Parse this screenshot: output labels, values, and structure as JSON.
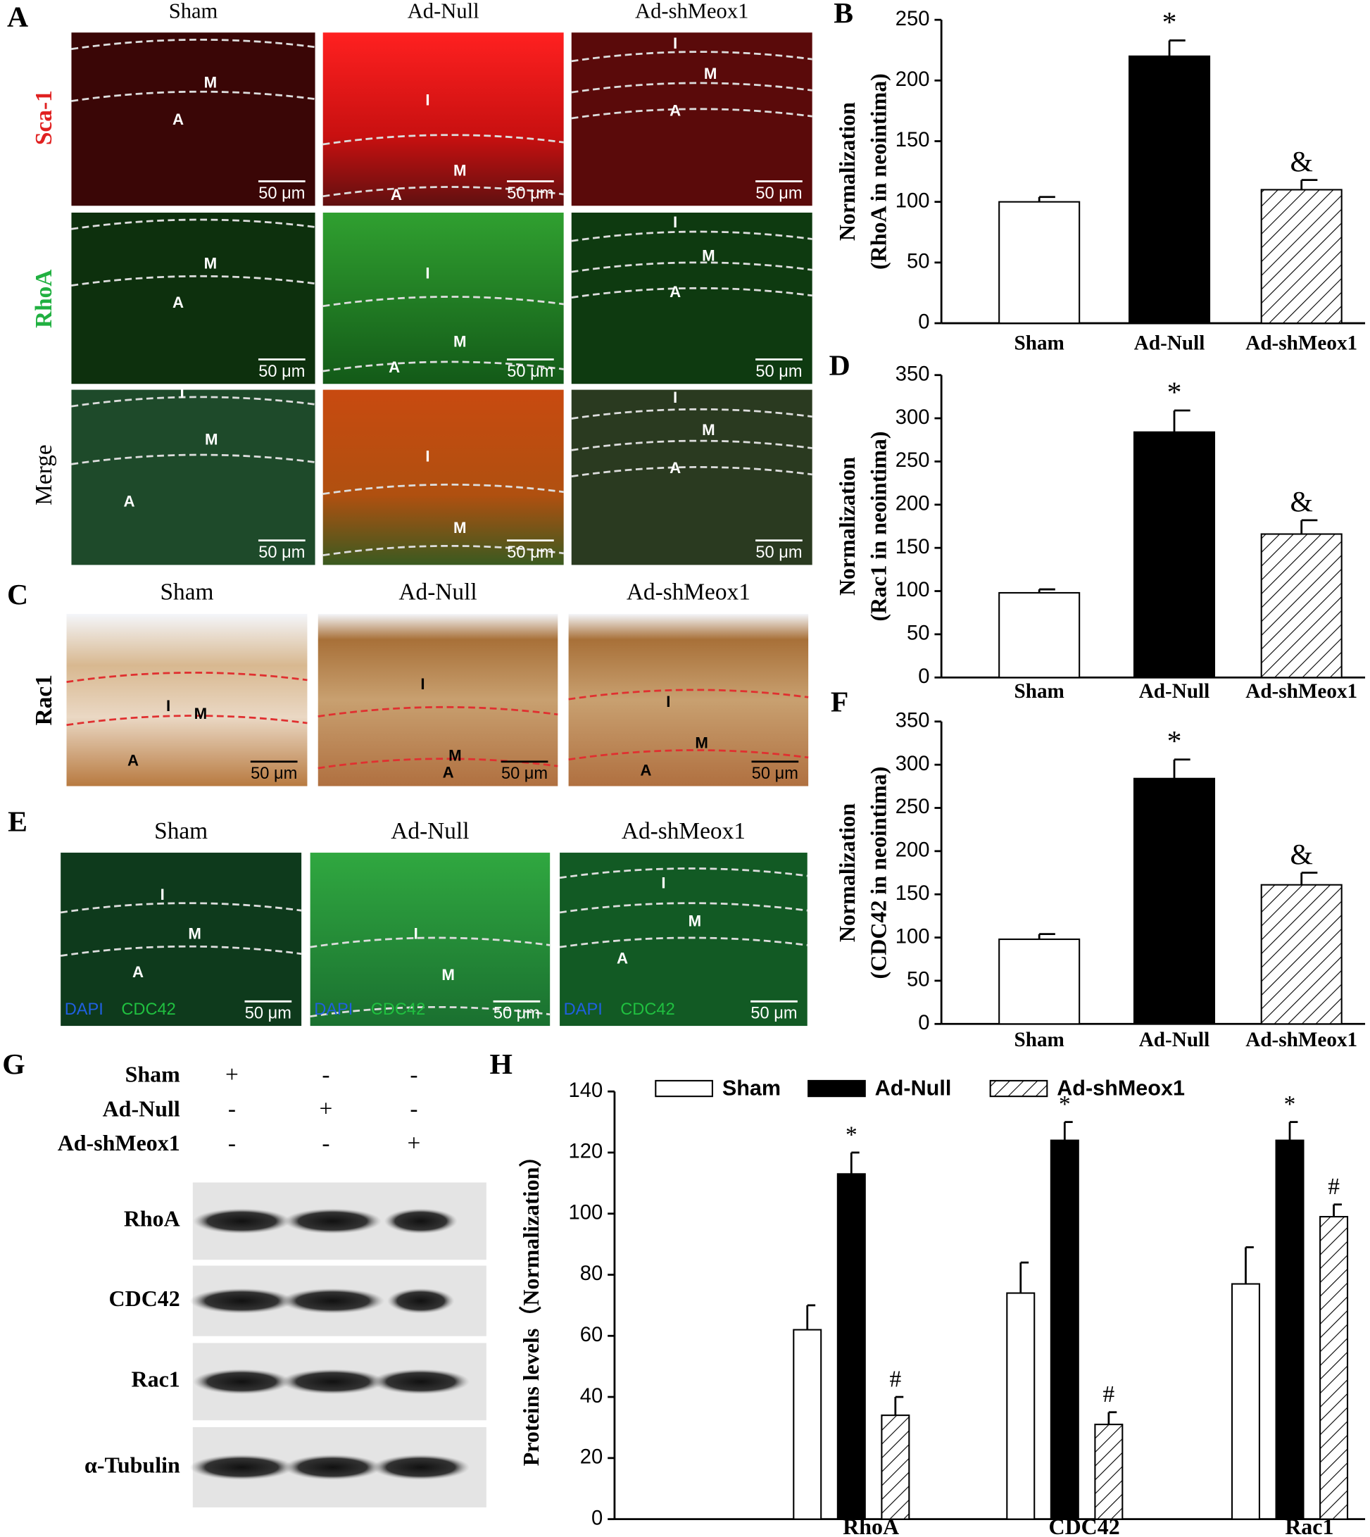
{
  "figure": {
    "panel_labels": [
      "A",
      "B",
      "C",
      "D",
      "E",
      "F",
      "G",
      "H"
    ],
    "panel_A": {
      "columns": [
        "Sham",
        "Ad-Null",
        "Ad-shMeox1"
      ],
      "rows": [
        "Sca-1",
        "RhoA",
        "Merge"
      ],
      "scale_bar": "50 μm",
      "regions": [
        [
          [
            "M",
            "A"
          ],
          [
            "I",
            "M",
            "A"
          ],
          [
            "I",
            "M",
            "A"
          ]
        ],
        [
          [
            "M",
            "A"
          ],
          [
            "I",
            "M",
            "A"
          ],
          [
            "I",
            "M",
            "A"
          ]
        ],
        [
          [
            "I",
            "M",
            "A"
          ],
          [
            "I",
            "M"
          ],
          [
            "I",
            "M",
            "A"
          ]
        ]
      ]
    },
    "panel_C": {
      "columns": [
        "Sham",
        "Ad-Null",
        "Ad-shMeox1"
      ],
      "row": "Rac1",
      "scale_bar": "50 μm",
      "regions": [
        [
          "I",
          "M",
          "A"
        ],
        [
          "I",
          "M",
          "A"
        ],
        [
          "I",
          "M",
          "A"
        ]
      ]
    },
    "panel_E": {
      "columns": [
        "Sham",
        "Ad-Null",
        "Ad-shMeox1"
      ],
      "stain_labels": [
        "DAPI",
        "CDC42"
      ],
      "scale_bar": "50 μm",
      "regions": [
        [
          "I",
          "M",
          "A"
        ],
        [
          "I",
          "M"
        ],
        [
          "I",
          "M",
          "A"
        ]
      ]
    },
    "panel_G": {
      "conditions": [
        "Sham",
        "Ad-Null",
        "Ad-shMeox1"
      ],
      "signs": [
        [
          "+",
          "-",
          "-"
        ],
        [
          "-",
          "+",
          "-"
        ],
        [
          "-",
          "-",
          "+"
        ]
      ],
      "bands": [
        "RhoA",
        "CDC42",
        "Rac1",
        "α-Tubulin"
      ]
    }
  },
  "chart_data": [
    {
      "type": "bar",
      "y_label": [
        "Normalization",
        "(RhoA in neointima)"
      ],
      "categories": [
        "Sham",
        "Ad-Null",
        "Ad-shMeox1"
      ],
      "values": [
        100,
        220,
        110
      ],
      "errors": [
        4,
        13,
        8
      ],
      "fills": [
        "#ffffff",
        "#000000",
        "hatch"
      ],
      "annotations": [
        null,
        "*",
        "&"
      ],
      "ylim": [
        0,
        250
      ],
      "yticks": [
        0,
        50,
        100,
        150,
        200,
        250
      ]
    },
    {
      "type": "bar",
      "y_label": [
        "Normalization",
        "(Rac1 in neointima)"
      ],
      "categories": [
        "Sham",
        "Ad-Null",
        "Ad-shMeox1"
      ],
      "values": [
        98,
        284,
        166
      ],
      "errors": [
        4,
        25,
        16
      ],
      "fills": [
        "#ffffff",
        "#000000",
        "hatch"
      ],
      "annotations": [
        null,
        "*",
        "&"
      ],
      "ylim": [
        0,
        350
      ],
      "yticks": [
        0,
        50,
        100,
        150,
        200,
        250,
        300,
        350
      ]
    },
    {
      "type": "bar",
      "y_label": [
        "Normalization",
        "(CDC42 in neointima)"
      ],
      "categories": [
        "Sham",
        "Ad-Null",
        "Ad-shMeox1"
      ],
      "values": [
        98,
        284,
        161
      ],
      "errors": [
        6,
        22,
        14
      ],
      "fills": [
        "#ffffff",
        "#000000",
        "hatch"
      ],
      "annotations": [
        null,
        "*",
        "&"
      ],
      "ylim": [
        0,
        350
      ],
      "yticks": [
        0,
        50,
        100,
        150,
        200,
        250,
        300,
        350
      ]
    },
    {
      "type": "grouped-bar",
      "y_label": [
        "Proteins levels（Normalization）"
      ],
      "categories": [
        "RhoA",
        "CDC42",
        "Rac1"
      ],
      "series": [
        {
          "name": "Sham",
          "color": "#ffffff",
          "values": [
            62,
            74,
            77
          ],
          "errors": [
            8,
            10,
            12
          ],
          "annotations": [
            null,
            null,
            null
          ]
        },
        {
          "name": "Ad-Null",
          "color": "#000000",
          "values": [
            113,
            124,
            124
          ],
          "errors": [
            7,
            6,
            6
          ],
          "annotations": [
            "*",
            "*",
            "*"
          ]
        },
        {
          "name": "Ad-shMeox1",
          "color": "hatch",
          "values": [
            34,
            31,
            99
          ],
          "errors": [
            6,
            4,
            4
          ],
          "annotations": [
            "#",
            "#",
            "#"
          ]
        }
      ],
      "legend": "top",
      "ylim": [
        0,
        140
      ],
      "yticks": [
        0,
        20,
        40,
        60,
        80,
        100,
        120,
        140
      ]
    }
  ]
}
